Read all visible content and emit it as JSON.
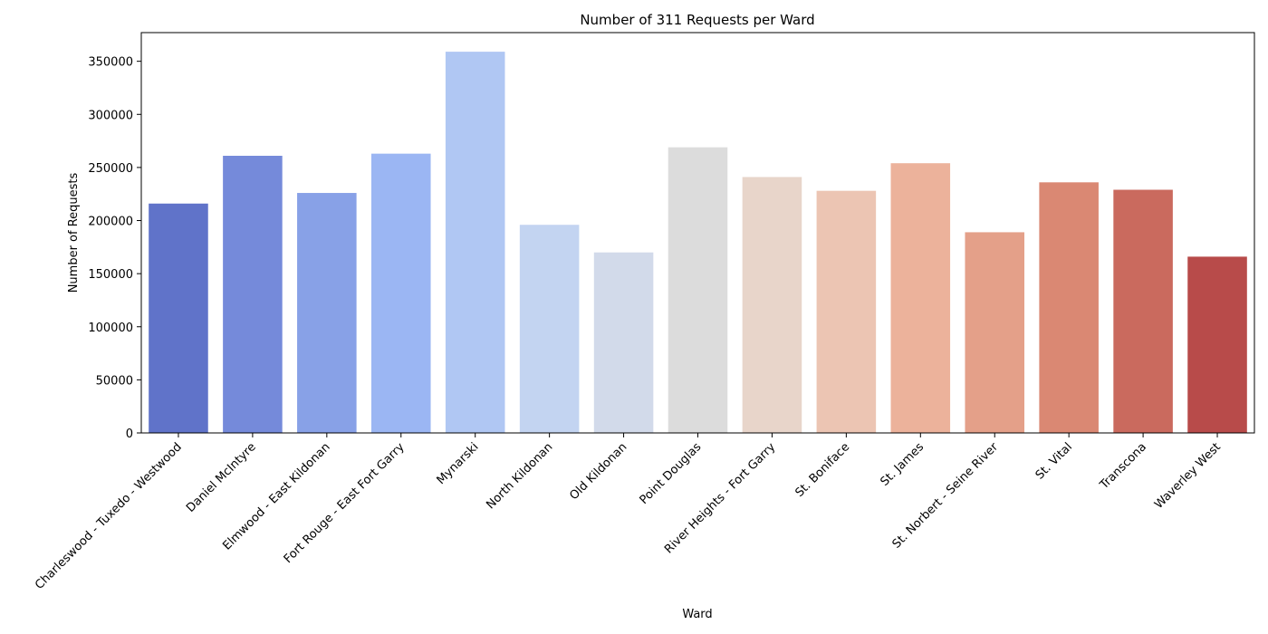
{
  "chart_data": {
    "type": "bar",
    "title": "Number of 311 Requests per Ward",
    "xlabel": "Ward",
    "ylabel": "Number of Requests",
    "ylim": [
      0,
      377000
    ],
    "yticks": [
      0,
      50000,
      100000,
      150000,
      200000,
      250000,
      300000,
      350000
    ],
    "grid": false,
    "legend": "none",
    "categories": [
      "Charleswood - Tuxedo - Westwood",
      "Daniel McIntyre",
      "Elmwood - East Kildonan",
      "Fort Rouge - East Fort Garry",
      "Mynarski",
      "North Kildonan",
      "Old Kildonan",
      "Point Douglas",
      "River Heights - Fort Garry",
      "St. Boniface",
      "St. James",
      "St. Norbert - Seine River",
      "St. Vital",
      "Transcona",
      "Waverley West"
    ],
    "values": [
      216000,
      261000,
      226000,
      263000,
      359000,
      196000,
      170000,
      269000,
      241000,
      228000,
      254000,
      189000,
      236000,
      229000,
      166000
    ],
    "colors": [
      "#6073c9",
      "#758ada",
      "#88a1e7",
      "#9bb6f3",
      "#b0c7f3",
      "#c3d4f1",
      "#d2daea",
      "#dcdcdc",
      "#e8d5ca",
      "#ecc5b3",
      "#ecb29b",
      "#e4a089",
      "#da8873",
      "#ca6a5e",
      "#b84b4a"
    ]
  }
}
